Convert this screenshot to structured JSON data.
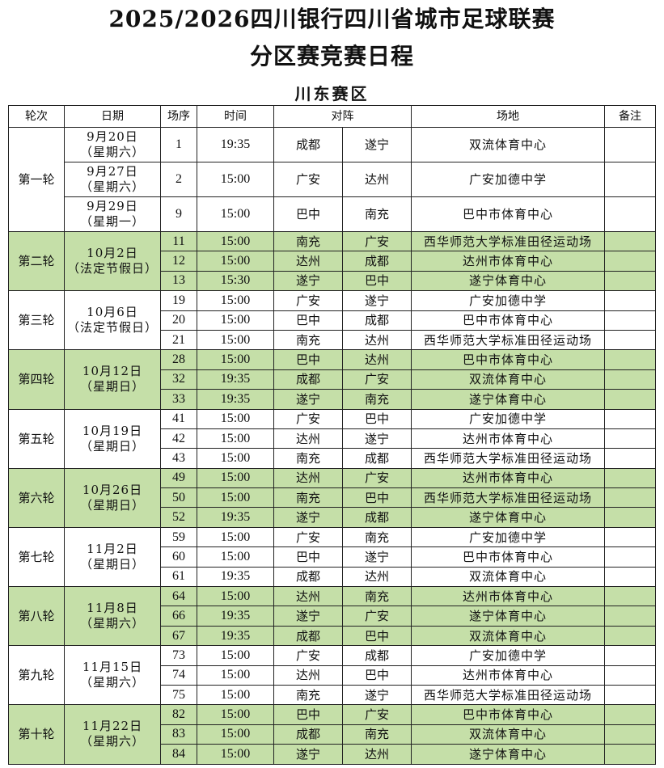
{
  "title_line1": "2025/2026四川银行四川省城市足球联赛",
  "title_line2": "分区赛竞赛日程",
  "division": "川东赛区",
  "colors": {
    "highlight": "#c5dfa8",
    "border": "#222222"
  },
  "headers": {
    "round": "轮次",
    "date": "日期",
    "match_no": "场序",
    "time": "时间",
    "matchup": "对阵",
    "venue": "场地",
    "notes": "备注"
  },
  "rounds": [
    {
      "round": "第一轮",
      "highlight": false,
      "per_match_date": true,
      "matches": [
        {
          "date": "9月20日",
          "weekday": "（星期六）",
          "no": "1",
          "time": "19:35",
          "home": "成都",
          "away": "遂宁",
          "venue": "双流体育中心",
          "note": ""
        },
        {
          "date": "9月27日",
          "weekday": "（星期六）",
          "no": "2",
          "time": "15:00",
          "home": "广安",
          "away": "达州",
          "venue": "广安加德中学",
          "note": ""
        },
        {
          "date": "9月29日",
          "weekday": "（星期一）",
          "no": "9",
          "time": "15:00",
          "home": "巴中",
          "away": "南充",
          "venue": "巴中市体育中心",
          "note": ""
        }
      ]
    },
    {
      "round": "第二轮",
      "highlight": true,
      "date": "10月2日",
      "weekday": "（法定节假日）",
      "matches": [
        {
          "no": "11",
          "time": "15:00",
          "home": "南充",
          "away": "广安",
          "venue": "西华师范大学标准田径运动场",
          "note": ""
        },
        {
          "no": "12",
          "time": "15:00",
          "home": "达州",
          "away": "成都",
          "venue": "达州市体育中心",
          "note": ""
        },
        {
          "no": "13",
          "time": "15:30",
          "home": "遂宁",
          "away": "巴中",
          "venue": "遂宁体育中心",
          "note": ""
        }
      ]
    },
    {
      "round": "第三轮",
      "highlight": false,
      "date": "10月6日",
      "weekday": "（法定节假日）",
      "matches": [
        {
          "no": "19",
          "time": "15:00",
          "home": "广安",
          "away": "遂宁",
          "venue": "广安加德中学",
          "note": ""
        },
        {
          "no": "20",
          "time": "15:00",
          "home": "巴中",
          "away": "成都",
          "venue": "巴中市体育中心",
          "note": ""
        },
        {
          "no": "21",
          "time": "15:00",
          "home": "南充",
          "away": "达州",
          "venue": "西华师范大学标准田径运动场",
          "note": ""
        }
      ]
    },
    {
      "round": "第四轮",
      "highlight": true,
      "date": "10月12日",
      "weekday": "（星期日）",
      "matches": [
        {
          "no": "28",
          "time": "15:00",
          "home": "巴中",
          "away": "达州",
          "venue": "巴中市体育中心",
          "note": ""
        },
        {
          "no": "32",
          "time": "19:35",
          "home": "成都",
          "away": "广安",
          "venue": "双流体育中心",
          "note": ""
        },
        {
          "no": "33",
          "time": "19:35",
          "home": "遂宁",
          "away": "南充",
          "venue": "遂宁体育中心",
          "note": ""
        }
      ]
    },
    {
      "round": "第五轮",
      "highlight": false,
      "date": "10月19日",
      "weekday": "（星期日）",
      "matches": [
        {
          "no": "41",
          "time": "15:00",
          "home": "广安",
          "away": "巴中",
          "venue": "广安加德中学",
          "note": ""
        },
        {
          "no": "42",
          "time": "15:00",
          "home": "达州",
          "away": "遂宁",
          "venue": "达州市体育中心",
          "note": ""
        },
        {
          "no": "43",
          "time": "15:00",
          "home": "南充",
          "away": "成都",
          "venue": "西华师范大学标准田径运动场",
          "note": ""
        }
      ]
    },
    {
      "round": "第六轮",
      "highlight": true,
      "date": "10月26日",
      "weekday": "（星期日）",
      "matches": [
        {
          "no": "49",
          "time": "15:00",
          "home": "达州",
          "away": "广安",
          "venue": "达州市体育中心",
          "note": ""
        },
        {
          "no": "50",
          "time": "15:00",
          "home": "南充",
          "away": "巴中",
          "venue": "西华师范大学标准田径运动场",
          "note": ""
        },
        {
          "no": "52",
          "time": "19:35",
          "home": "遂宁",
          "away": "成都",
          "venue": "遂宁体育中心",
          "note": ""
        }
      ]
    },
    {
      "round": "第七轮",
      "highlight": false,
      "date": "11月2日",
      "weekday": "（星期日）",
      "matches": [
        {
          "no": "59",
          "time": "15:00",
          "home": "广安",
          "away": "南充",
          "venue": "广安加德中学",
          "note": ""
        },
        {
          "no": "60",
          "time": "15:00",
          "home": "巴中",
          "away": "遂宁",
          "venue": "巴中市体育中心",
          "note": ""
        },
        {
          "no": "61",
          "time": "19:35",
          "home": "成都",
          "away": "达州",
          "venue": "双流体育中心",
          "note": ""
        }
      ]
    },
    {
      "round": "第八轮",
      "highlight": true,
      "date": "11月8日",
      "weekday": "（星期六）",
      "matches": [
        {
          "no": "64",
          "time": "15:00",
          "home": "达州",
          "away": "南充",
          "venue": "达州市体育中心",
          "note": ""
        },
        {
          "no": "66",
          "time": "19:35",
          "home": "遂宁",
          "away": "广安",
          "venue": "遂宁体育中心",
          "note": ""
        },
        {
          "no": "67",
          "time": "19:35",
          "home": "成都",
          "away": "巴中",
          "venue": "双流体育中心",
          "note": ""
        }
      ]
    },
    {
      "round": "第九轮",
      "highlight": false,
      "date": "11月15日",
      "weekday": "（星期六）",
      "matches": [
        {
          "no": "73",
          "time": "15:00",
          "home": "广安",
          "away": "成都",
          "venue": "广安加德中学",
          "note": ""
        },
        {
          "no": "74",
          "time": "15:00",
          "home": "达州",
          "away": "巴中",
          "venue": "达州市体育中心",
          "note": ""
        },
        {
          "no": "75",
          "time": "15:00",
          "home": "南充",
          "away": "遂宁",
          "venue": "西华师范大学标准田径运动场",
          "note": ""
        }
      ]
    },
    {
      "round": "第十轮",
      "highlight": true,
      "date": "11月22日",
      "weekday": "（星期六）",
      "matches": [
        {
          "no": "82",
          "time": "15:00",
          "home": "巴中",
          "away": "广安",
          "venue": "巴中市体育中心",
          "note": ""
        },
        {
          "no": "83",
          "time": "15:00",
          "home": "成都",
          "away": "南充",
          "venue": "双流体育中心",
          "note": ""
        },
        {
          "no": "84",
          "time": "15:00",
          "home": "遂宁",
          "away": "达州",
          "venue": "遂宁体育中心",
          "note": ""
        }
      ]
    }
  ]
}
